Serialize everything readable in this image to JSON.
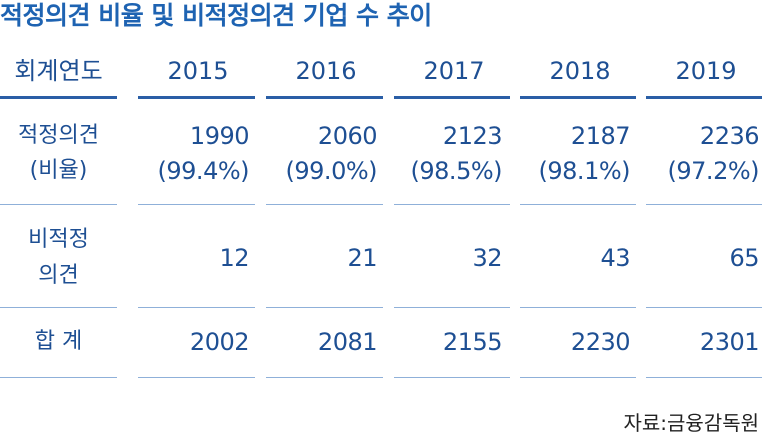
{
  "title": "적정의견 비율 및 비적정의견 기업 수 추이",
  "header": {
    "label": "회계연도",
    "years": [
      "2015",
      "2016",
      "2017",
      "2018",
      "2019"
    ]
  },
  "rows": [
    {
      "label_lines": [
        "적정의견",
        "(비율)"
      ],
      "values": [
        {
          "count": "1990",
          "ratio": "(99.4%)"
        },
        {
          "count": "2060",
          "ratio": "(99.0%)"
        },
        {
          "count": "2123",
          "ratio": "(98.5%)"
        },
        {
          "count": "2187",
          "ratio": "(98.1%)"
        },
        {
          "count": "2236",
          "ratio": "(97.2%)"
        }
      ]
    },
    {
      "label_lines": [
        "비적정",
        "의견"
      ],
      "values": [
        "12",
        "21",
        "32",
        "43",
        "65"
      ]
    },
    {
      "label_lines": [
        "합 계"
      ],
      "values": [
        "2002",
        "2081",
        "2155",
        "2230",
        "2301"
      ]
    }
  ],
  "source": "자료:금융감독원"
}
